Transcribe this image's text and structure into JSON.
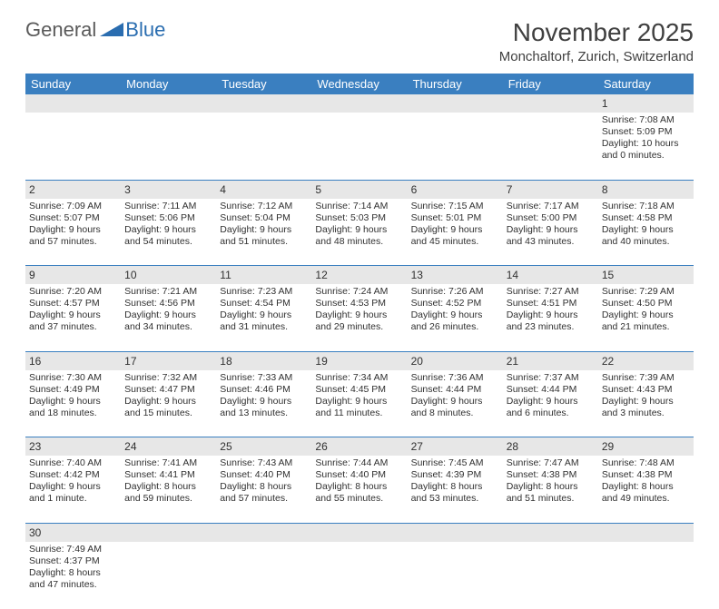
{
  "logo": {
    "general": "General",
    "blue": "Blue"
  },
  "title": "November 2025",
  "subtitle": "Monchaltorf, Zurich, Switzerland",
  "day_headers": [
    "Sunday",
    "Monday",
    "Tuesday",
    "Wednesday",
    "Thursday",
    "Friday",
    "Saturday"
  ],
  "colors": {
    "header_bg": "#3a7fc0",
    "header_fg": "#ffffff",
    "num_row_bg": "#e7e7e7",
    "text": "#303030",
    "logo_gray": "#5a5a5a",
    "logo_blue": "#2a6db0"
  },
  "weeks": [
    {
      "nums": [
        "",
        "",
        "",
        "",
        "",
        "",
        "1"
      ],
      "cells": [
        null,
        null,
        null,
        null,
        null,
        null,
        {
          "sunrise": "Sunrise: 7:08 AM",
          "sunset": "Sunset: 5:09 PM",
          "day1": "Daylight: 10 hours",
          "day2": "and 0 minutes."
        }
      ]
    },
    {
      "nums": [
        "2",
        "3",
        "4",
        "5",
        "6",
        "7",
        "8"
      ],
      "cells": [
        {
          "sunrise": "Sunrise: 7:09 AM",
          "sunset": "Sunset: 5:07 PM",
          "day1": "Daylight: 9 hours",
          "day2": "and 57 minutes."
        },
        {
          "sunrise": "Sunrise: 7:11 AM",
          "sunset": "Sunset: 5:06 PM",
          "day1": "Daylight: 9 hours",
          "day2": "and 54 minutes."
        },
        {
          "sunrise": "Sunrise: 7:12 AM",
          "sunset": "Sunset: 5:04 PM",
          "day1": "Daylight: 9 hours",
          "day2": "and 51 minutes."
        },
        {
          "sunrise": "Sunrise: 7:14 AM",
          "sunset": "Sunset: 5:03 PM",
          "day1": "Daylight: 9 hours",
          "day2": "and 48 minutes."
        },
        {
          "sunrise": "Sunrise: 7:15 AM",
          "sunset": "Sunset: 5:01 PM",
          "day1": "Daylight: 9 hours",
          "day2": "and 45 minutes."
        },
        {
          "sunrise": "Sunrise: 7:17 AM",
          "sunset": "Sunset: 5:00 PM",
          "day1": "Daylight: 9 hours",
          "day2": "and 43 minutes."
        },
        {
          "sunrise": "Sunrise: 7:18 AM",
          "sunset": "Sunset: 4:58 PM",
          "day1": "Daylight: 9 hours",
          "day2": "and 40 minutes."
        }
      ]
    },
    {
      "nums": [
        "9",
        "10",
        "11",
        "12",
        "13",
        "14",
        "15"
      ],
      "cells": [
        {
          "sunrise": "Sunrise: 7:20 AM",
          "sunset": "Sunset: 4:57 PM",
          "day1": "Daylight: 9 hours",
          "day2": "and 37 minutes."
        },
        {
          "sunrise": "Sunrise: 7:21 AM",
          "sunset": "Sunset: 4:56 PM",
          "day1": "Daylight: 9 hours",
          "day2": "and 34 minutes."
        },
        {
          "sunrise": "Sunrise: 7:23 AM",
          "sunset": "Sunset: 4:54 PM",
          "day1": "Daylight: 9 hours",
          "day2": "and 31 minutes."
        },
        {
          "sunrise": "Sunrise: 7:24 AM",
          "sunset": "Sunset: 4:53 PM",
          "day1": "Daylight: 9 hours",
          "day2": "and 29 minutes."
        },
        {
          "sunrise": "Sunrise: 7:26 AM",
          "sunset": "Sunset: 4:52 PM",
          "day1": "Daylight: 9 hours",
          "day2": "and 26 minutes."
        },
        {
          "sunrise": "Sunrise: 7:27 AM",
          "sunset": "Sunset: 4:51 PM",
          "day1": "Daylight: 9 hours",
          "day2": "and 23 minutes."
        },
        {
          "sunrise": "Sunrise: 7:29 AM",
          "sunset": "Sunset: 4:50 PM",
          "day1": "Daylight: 9 hours",
          "day2": "and 21 minutes."
        }
      ]
    },
    {
      "nums": [
        "16",
        "17",
        "18",
        "19",
        "20",
        "21",
        "22"
      ],
      "cells": [
        {
          "sunrise": "Sunrise: 7:30 AM",
          "sunset": "Sunset: 4:49 PM",
          "day1": "Daylight: 9 hours",
          "day2": "and 18 minutes."
        },
        {
          "sunrise": "Sunrise: 7:32 AM",
          "sunset": "Sunset: 4:47 PM",
          "day1": "Daylight: 9 hours",
          "day2": "and 15 minutes."
        },
        {
          "sunrise": "Sunrise: 7:33 AM",
          "sunset": "Sunset: 4:46 PM",
          "day1": "Daylight: 9 hours",
          "day2": "and 13 minutes."
        },
        {
          "sunrise": "Sunrise: 7:34 AM",
          "sunset": "Sunset: 4:45 PM",
          "day1": "Daylight: 9 hours",
          "day2": "and 11 minutes."
        },
        {
          "sunrise": "Sunrise: 7:36 AM",
          "sunset": "Sunset: 4:44 PM",
          "day1": "Daylight: 9 hours",
          "day2": "and 8 minutes."
        },
        {
          "sunrise": "Sunrise: 7:37 AM",
          "sunset": "Sunset: 4:44 PM",
          "day1": "Daylight: 9 hours",
          "day2": "and 6 minutes."
        },
        {
          "sunrise": "Sunrise: 7:39 AM",
          "sunset": "Sunset: 4:43 PM",
          "day1": "Daylight: 9 hours",
          "day2": "and 3 minutes."
        }
      ]
    },
    {
      "nums": [
        "23",
        "24",
        "25",
        "26",
        "27",
        "28",
        "29"
      ],
      "cells": [
        {
          "sunrise": "Sunrise: 7:40 AM",
          "sunset": "Sunset: 4:42 PM",
          "day1": "Daylight: 9 hours",
          "day2": "and 1 minute."
        },
        {
          "sunrise": "Sunrise: 7:41 AM",
          "sunset": "Sunset: 4:41 PM",
          "day1": "Daylight: 8 hours",
          "day2": "and 59 minutes."
        },
        {
          "sunrise": "Sunrise: 7:43 AM",
          "sunset": "Sunset: 4:40 PM",
          "day1": "Daylight: 8 hours",
          "day2": "and 57 minutes."
        },
        {
          "sunrise": "Sunrise: 7:44 AM",
          "sunset": "Sunset: 4:40 PM",
          "day1": "Daylight: 8 hours",
          "day2": "and 55 minutes."
        },
        {
          "sunrise": "Sunrise: 7:45 AM",
          "sunset": "Sunset: 4:39 PM",
          "day1": "Daylight: 8 hours",
          "day2": "and 53 minutes."
        },
        {
          "sunrise": "Sunrise: 7:47 AM",
          "sunset": "Sunset: 4:38 PM",
          "day1": "Daylight: 8 hours",
          "day2": "and 51 minutes."
        },
        {
          "sunrise": "Sunrise: 7:48 AM",
          "sunset": "Sunset: 4:38 PM",
          "day1": "Daylight: 8 hours",
          "day2": "and 49 minutes."
        }
      ]
    },
    {
      "nums": [
        "30",
        "",
        "",
        "",
        "",
        "",
        ""
      ],
      "cells": [
        {
          "sunrise": "Sunrise: 7:49 AM",
          "sunset": "Sunset: 4:37 PM",
          "day1": "Daylight: 8 hours",
          "day2": "and 47 minutes."
        },
        null,
        null,
        null,
        null,
        null,
        null
      ]
    }
  ]
}
